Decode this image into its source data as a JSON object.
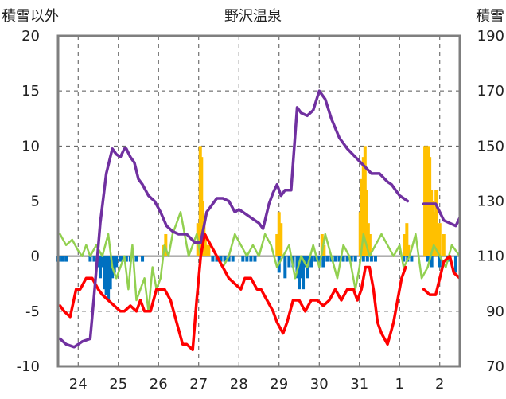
{
  "chart_data": {
    "type": "line",
    "title": "野沢温泉",
    "ylabel_left": "積雪以外",
    "ylabel_right": "積雪",
    "ylim_left": [
      -10,
      20
    ],
    "ylim_right": [
      70,
      190
    ],
    "yticks_left": [
      "20",
      "15",
      "10",
      "5",
      "0",
      "-5",
      "-10"
    ],
    "yticks_right": [
      "190",
      "170",
      "150",
      "130",
      "110",
      "90",
      "70"
    ],
    "xticks": [
      "24",
      "25",
      "26",
      "27",
      "28",
      "29",
      "30",
      "31",
      "1",
      "2"
    ],
    "grid": true,
    "colors": {
      "snow_depth": "#7030A0",
      "temperature": "#FF0000",
      "wind": "#92D050",
      "precipitation": "#FFC000",
      "snow_depth_change": "#0070C0",
      "zero_line": "#7F7F7F",
      "frame": "#7F7F7F",
      "grid": "#555555"
    },
    "series": [
      {
        "key": "snow_depth",
        "axis": "right",
        "x": [
          23.55,
          23.7,
          23.9,
          24.1,
          24.3,
          24.4,
          24.55,
          24.7,
          24.85,
          24.95,
          25.05,
          25.15,
          25.2,
          25.3,
          25.4,
          25.5,
          25.6,
          25.75,
          25.9,
          26.05,
          26.2,
          26.35,
          26.5,
          26.7,
          26.9,
          27.05,
          27.2,
          27.3,
          27.45,
          27.6,
          27.75,
          27.9,
          28.0,
          28.1,
          28.3,
          28.5,
          28.6,
          28.75,
          28.85,
          28.95,
          29.05,
          29.15,
          29.3,
          29.45,
          29.55,
          29.7,
          29.85,
          30.0,
          30.15,
          30.3,
          30.5,
          30.7,
          30.9,
          31.1,
          31.3,
          31.5,
          31.7,
          31.8,
          31.9,
          32.0,
          32.1,
          32.2
        ],
        "values": [
          80,
          78,
          77,
          79,
          80,
          96,
          122,
          140,
          149,
          147,
          146,
          149,
          149,
          146,
          144,
          138,
          136,
          132,
          130,
          126,
          121,
          119,
          118,
          118,
          115,
          115,
          126,
          128,
          131,
          131,
          130,
          126,
          127,
          126,
          124,
          122,
          120,
          129,
          133,
          136,
          132,
          134,
          134,
          164,
          162,
          161,
          163,
          170,
          167,
          160,
          153,
          149,
          146,
          143,
          140,
          140,
          137,
          136,
          134,
          132,
          131,
          130
        ]
      },
      {
        "key": "snow_depth",
        "axis": "right",
        "x": [
          32.6,
          32.75,
          32.9,
          33.0,
          33.1,
          33.25,
          33.4,
          33.5
        ],
        "values": [
          129,
          129,
          129,
          126,
          123,
          122,
          121,
          124
        ]
      },
      {
        "key": "temperature",
        "axis": "left",
        "x": [
          23.55,
          23.65,
          23.8,
          23.95,
          24.05,
          24.2,
          24.35,
          24.5,
          24.6,
          24.75,
          24.9,
          25.05,
          25.15,
          25.3,
          25.45,
          25.55,
          25.65,
          25.8,
          25.95,
          26.05,
          26.15,
          26.3,
          26.45,
          26.6,
          26.7,
          26.85,
          26.95,
          27.05,
          27.15,
          27.3,
          27.45,
          27.6,
          27.75,
          27.9,
          28.05,
          28.15,
          28.3,
          28.45,
          28.55,
          28.7,
          28.85,
          28.95,
          29.1,
          29.2,
          29.35,
          29.5,
          29.65,
          29.8,
          29.95,
          30.1,
          30.25,
          30.4,
          30.55,
          30.7,
          30.85,
          30.95,
          31.05,
          31.15,
          31.25,
          31.35,
          31.45,
          31.55,
          31.7,
          31.85,
          31.95,
          32.05,
          32.15
        ],
        "values": [
          -4.5,
          -5,
          -5.5,
          -3,
          -3,
          -2,
          -2,
          -3,
          -3.5,
          -4,
          -4.5,
          -5,
          -5,
          -4.5,
          -5,
          -4,
          -5,
          -5,
          -3,
          -3,
          -3,
          -4,
          -6,
          -8,
          -8,
          -8.5,
          -4,
          0,
          2,
          1,
          0,
          -1,
          -2,
          -2.5,
          -3,
          -2,
          -2,
          -3,
          -3,
          -4,
          -5,
          -6,
          -7,
          -6,
          -4,
          -4,
          -5,
          -4,
          -4,
          -4.5,
          -4,
          -3,
          -4,
          -3,
          -3,
          -4,
          -3,
          -1,
          -1,
          -3,
          -6,
          -7,
          -8,
          -6,
          -4,
          -2,
          -1
        ]
      },
      {
        "key": "temperature",
        "axis": "left",
        "x": [
          32.6,
          32.75,
          32.9,
          33.0,
          33.1,
          33.25,
          33.35,
          33.5
        ],
        "values": [
          -3,
          -3.5,
          -3.5,
          -2,
          -0.5,
          0,
          -1.5,
          -2
        ]
      },
      {
        "key": "wind",
        "axis": "left",
        "x": [
          23.55,
          23.7,
          23.85,
          24.0,
          24.1,
          24.2,
          24.3,
          24.45,
          24.6,
          24.75,
          24.85,
          24.95,
          25.05,
          25.15,
          25.25,
          25.35,
          25.45,
          25.55,
          25.65,
          25.75,
          25.85,
          25.95,
          26.05,
          26.15,
          26.25,
          26.35,
          26.45,
          26.55,
          26.65,
          26.75,
          26.85,
          26.95,
          27.05,
          27.15,
          27.3,
          27.45,
          27.6,
          27.75,
          27.9,
          28.05,
          28.2,
          28.35,
          28.5,
          28.65,
          28.8,
          28.95,
          29.1,
          29.25,
          29.4,
          29.55,
          29.7,
          29.85,
          30.0,
          30.15,
          30.3,
          30.45,
          30.6,
          30.75,
          30.9,
          31.0,
          31.1,
          31.25,
          31.4,
          31.55,
          31.7,
          31.85,
          32.0,
          32.1,
          32.25,
          32.4,
          32.55,
          32.7,
          32.85,
          33.0,
          33.15,
          33.3,
          33.5
        ],
        "values": [
          2,
          1,
          1.5,
          0.5,
          0,
          1,
          0,
          1,
          0,
          2,
          -1,
          -2,
          -1,
          0,
          -3,
          1,
          -4,
          -3,
          -2,
          -5,
          -1,
          -3,
          -2,
          1,
          0,
          2,
          3,
          4,
          2,
          0,
          1,
          2,
          0,
          2,
          1,
          0,
          -1,
          0,
          2,
          1,
          0,
          1,
          0,
          2,
          1,
          -1,
          0,
          1,
          -2,
          0,
          -1,
          1,
          -1,
          2,
          0,
          -2,
          1,
          0,
          -3,
          -1,
          2,
          0,
          1,
          2,
          1,
          0,
          1,
          -1,
          0,
          2,
          -2,
          -1,
          1,
          0,
          -1,
          1,
          0
        ]
      }
    ],
    "bars": [
      {
        "key": "precipitation",
        "axis": "left",
        "x": [
          26.13,
          26.18,
          26.98,
          27.01,
          27.04,
          27.07,
          27.1,
          27.13,
          27.16,
          27.19,
          27.22,
          27.25,
          28.95,
          29.0,
          29.05,
          30.07,
          30.12,
          31.02,
          31.06,
          31.1,
          31.14,
          31.18,
          31.22,
          31.26,
          32.13,
          32.18,
          32.22,
          32.63,
          32.67,
          32.71,
          32.75,
          32.79,
          32.83,
          32.87,
          32.91,
          33.0,
          33.1
        ],
        "values": [
          1,
          2,
          3,
          2,
          10,
          9,
          5,
          3,
          2,
          1,
          1,
          1,
          2,
          4,
          3,
          2,
          1,
          4,
          7,
          9,
          10,
          6,
          3,
          2,
          2,
          3,
          1,
          10,
          10,
          10,
          9,
          6,
          5,
          4,
          6,
          3,
          2
        ]
      },
      {
        "key": "snow_depth_change",
        "axis": "left",
        "x": [
          23.5,
          23.6,
          23.7,
          24.3,
          24.4,
          24.5,
          24.55,
          24.6,
          24.65,
          24.7,
          24.75,
          24.8,
          24.85,
          24.9,
          24.95,
          25.05,
          25.1,
          25.2,
          25.3,
          25.45,
          25.6,
          27.35,
          27.45,
          27.55,
          27.65,
          27.75,
          27.85,
          28.1,
          28.2,
          28.3,
          28.4,
          29.0,
          29.15,
          29.25,
          29.35,
          29.45,
          29.5,
          29.55,
          29.6,
          29.65,
          29.7,
          29.8,
          29.9,
          30.0,
          30.1,
          30.2,
          30.3,
          30.4,
          30.5,
          30.6,
          30.7,
          30.8,
          30.9,
          31.1,
          31.2,
          31.3,
          31.4,
          32.1,
          32.2,
          32.3,
          32.7,
          32.8,
          33.0,
          33.2,
          33.4
        ],
        "values": [
          -0.5,
          -0.5,
          -0.5,
          -0.5,
          -0.5,
          -1,
          -2,
          -1,
          -3,
          -3.5,
          -4,
          -3,
          -2,
          -1.5,
          -1,
          -0.5,
          -0.5,
          -0.5,
          -0.5,
          -0.5,
          -0.5,
          -0.5,
          -0.5,
          -0.5,
          -0.5,
          -0.5,
          -0.5,
          -0.5,
          -0.5,
          -0.5,
          -0.5,
          -1.5,
          -2,
          -1,
          -1,
          -2,
          -3,
          -2,
          -3,
          -1,
          -2,
          -1,
          -0.5,
          -0.5,
          -1,
          -0.5,
          -0.5,
          -0.5,
          -0.5,
          -0.5,
          -0.5,
          -0.5,
          -0.5,
          -0.5,
          -0.5,
          -0.5,
          -0.5,
          -0.5,
          -0.5,
          -0.5,
          -0.5,
          -1,
          -1,
          -0.5,
          -1.5
        ]
      }
    ]
  }
}
